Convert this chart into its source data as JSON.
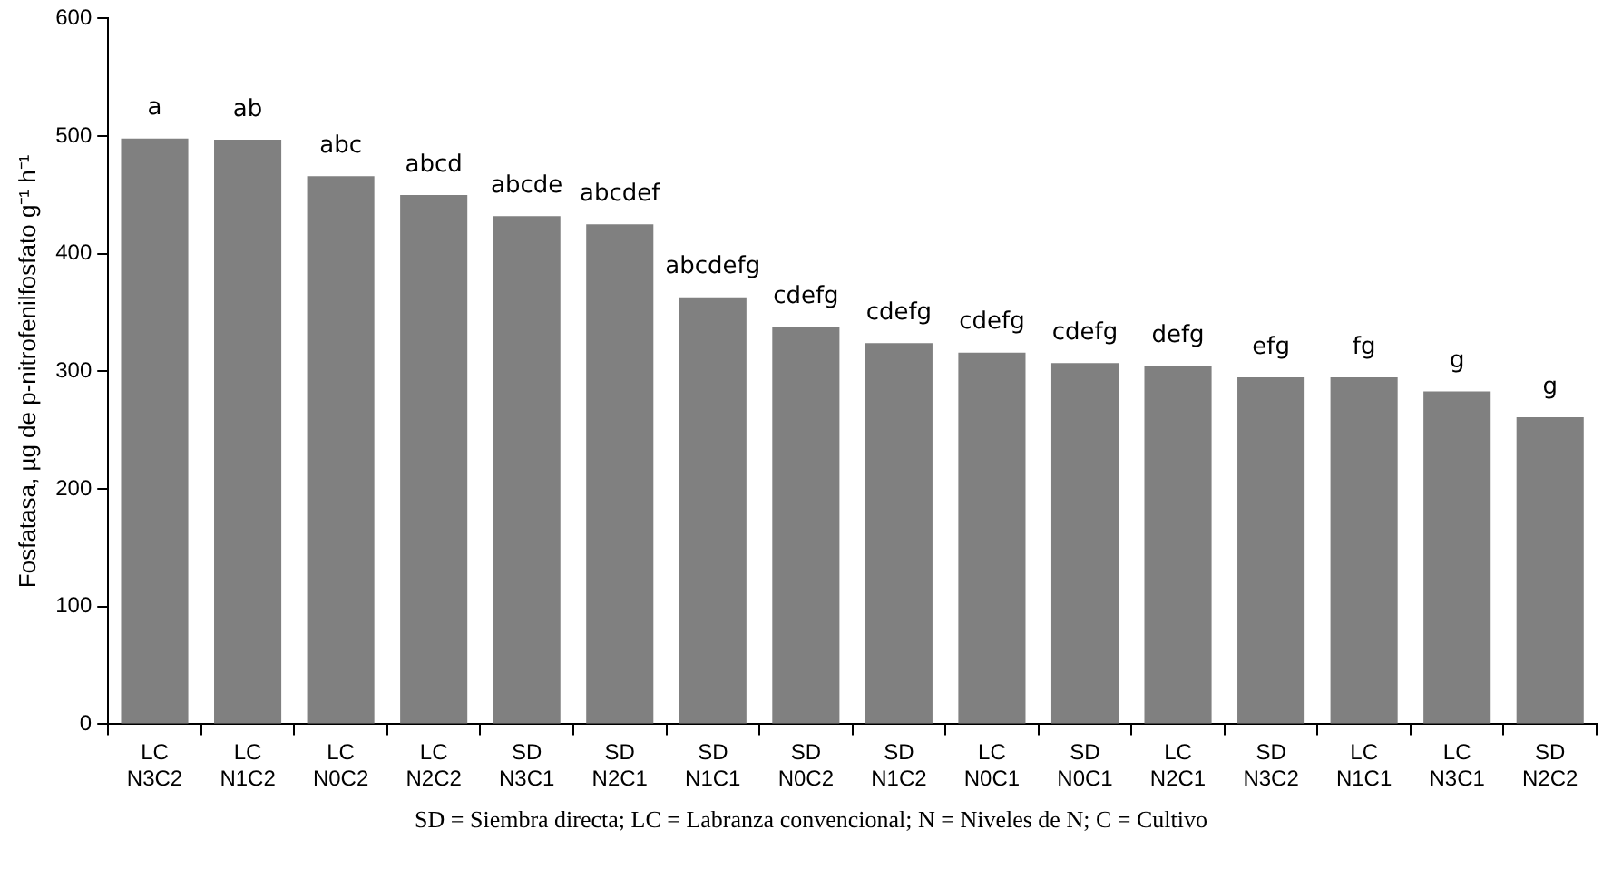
{
  "chart_data": {
    "type": "bar",
    "ylabel": "Fosfatasa, µg de p-nitrofenilfosfato g⁻¹ h⁻¹",
    "categories": [
      "LC N3C2",
      "LC N1C2",
      "LC N0C2",
      "LC N2C2",
      "SD N3C1",
      "SD N2C1",
      "SD N1C1",
      "SD N0C2",
      "SD N1C2",
      "LC N0C1",
      "SD N0C1",
      "LC N2C1",
      "SD N3C2",
      "LC N1C1",
      "LC N3C1",
      "SD N2C2"
    ],
    "values": [
      498,
      497,
      466,
      450,
      432,
      425,
      363,
      338,
      324,
      316,
      307,
      305,
      295,
      295,
      283,
      261
    ],
    "color": "#808080",
    "ylim": [
      0,
      600
    ],
    "yticks": [
      0,
      100,
      200,
      300,
      400,
      500,
      600
    ],
    "grid": false,
    "legend": false,
    "annotations": [
      {
        "text": "a",
        "x": "LC N3C2",
        "y": 498
      },
      {
        "text": "ab",
        "x": "LC N1C2",
        "y": 497
      },
      {
        "text": "abc",
        "x": "LC N0C2",
        "y": 466
      },
      {
        "text": "abcd",
        "x": "LC N2C2",
        "y": 450
      },
      {
        "text": "abcde",
        "x": "SD N3C1",
        "y": 432
      },
      {
        "text": "abcdef",
        "x": "SD N2C1",
        "y": 425
      },
      {
        "text": "abcdefg",
        "x": "SD N1C1",
        "y": 363
      },
      {
        "text": "cdefg",
        "x": "SD N0C2",
        "y": 338
      },
      {
        "text": "cdefg",
        "x": "SD N1C2",
        "y": 324
      },
      {
        "text": "cdefg",
        "x": "LC N0C1",
        "y": 316
      },
      {
        "text": "cdefg",
        "x": "SD N0C1",
        "y": 307
      },
      {
        "text": "defg",
        "x": "LC N2C1",
        "y": 305
      },
      {
        "text": "efg",
        "x": "SD N3C2",
        "y": 295
      },
      {
        "text": "fg",
        "x": "LC N1C1",
        "y": 295
      },
      {
        "text": "g",
        "x": "LC N3C1",
        "y": 283
      },
      {
        "text": "g",
        "x": "SD N2C2",
        "y": 261
      },
      "SD = Siembra directa; LC = Labranza convencional; N = Niveles de N; C = Cultivo"
    ]
  }
}
